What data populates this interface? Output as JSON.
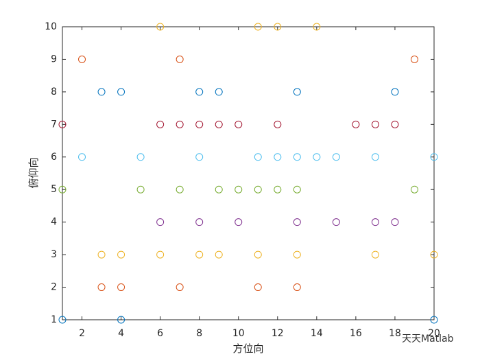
{
  "chart_data": {
    "type": "scatter",
    "xlabel": "方位向",
    "ylabel": "俯仰向",
    "watermark": "天天Matlab",
    "xlim": [
      1,
      20
    ],
    "ylim": [
      1,
      10
    ],
    "xticks": [
      2,
      4,
      6,
      8,
      10,
      12,
      14,
      16,
      18,
      20
    ],
    "yticks": [
      1,
      2,
      3,
      4,
      5,
      6,
      7,
      8,
      9,
      10
    ],
    "grid": false,
    "series": [
      {
        "color": "#0072BD",
        "x": [
          1,
          4,
          20,
          3,
          4,
          8,
          9,
          13,
          18
        ],
        "values": [
          1,
          1,
          1,
          8,
          8,
          8,
          8,
          8,
          8
        ]
      },
      {
        "color": "#D95319",
        "x": [
          2,
          7,
          19,
          3,
          4,
          7,
          11,
          13
        ],
        "values": [
          9,
          9,
          9,
          2,
          2,
          2,
          2,
          2
        ]
      },
      {
        "color": "#EDB120",
        "x": [
          6,
          11,
          12,
          14,
          3,
          4,
          6,
          8,
          9,
          11,
          13,
          17,
          20
        ],
        "values": [
          10,
          10,
          10,
          10,
          3,
          3,
          3,
          3,
          3,
          3,
          3,
          3,
          3
        ]
      },
      {
        "color": "#7E2F8E",
        "x": [
          6,
          8,
          10,
          13,
          15,
          17,
          18
        ],
        "values": [
          4,
          4,
          4,
          4,
          4,
          4,
          4
        ]
      },
      {
        "color": "#77AC30",
        "x": [
          1,
          5,
          7,
          9,
          10,
          11,
          12,
          13,
          19
        ],
        "values": [
          5,
          5,
          5,
          5,
          5,
          5,
          5,
          5,
          5
        ]
      },
      {
        "color": "#4DBEEE",
        "x": [
          2,
          5,
          8,
          11,
          12,
          13,
          14,
          15,
          17,
          20
        ],
        "values": [
          6,
          6,
          6,
          6,
          6,
          6,
          6,
          6,
          6,
          6
        ]
      },
      {
        "color": "#A2142F",
        "x": [
          1,
          6,
          7,
          8,
          9,
          10,
          12,
          16,
          17,
          18
        ],
        "values": [
          7,
          7,
          7,
          7,
          7,
          7,
          7,
          7,
          7,
          7
        ]
      }
    ]
  }
}
